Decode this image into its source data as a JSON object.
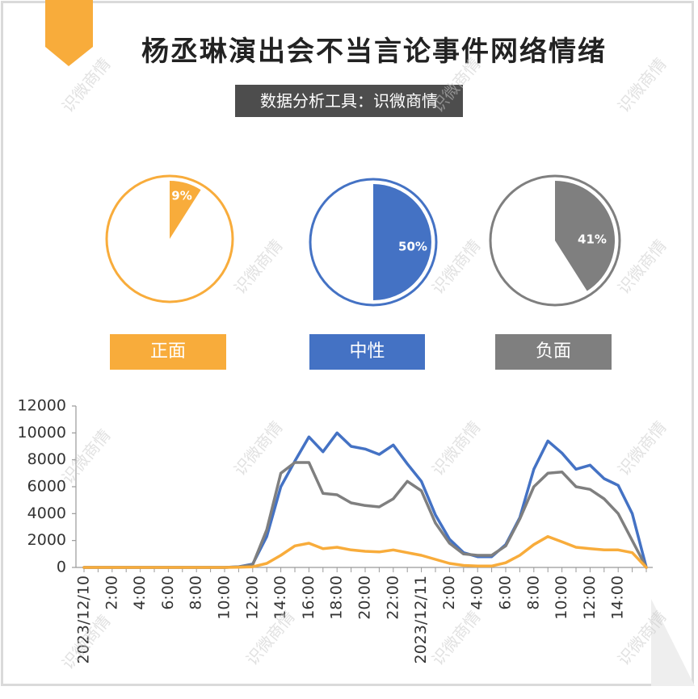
{
  "title": "杨丞琳演出会不当言论事件网络情绪",
  "subtitle": "数据分析工具：识微商情",
  "watermark": "识微商情",
  "colors": {
    "positive": "#f8ac3b",
    "neutral": "#4472c4",
    "negative": "#7f7f7f"
  },
  "pies": [
    {
      "label": "正面",
      "percent": 9,
      "percent_label": "9%",
      "color": "#f8ac3b"
    },
    {
      "label": "中性",
      "percent": 50,
      "percent_label": "50%",
      "color": "#4472c4"
    },
    {
      "label": "负面",
      "percent": 41,
      "percent_label": "41%",
      "color": "#7f7f7f"
    }
  ],
  "chart_data": {
    "type": "line",
    "title": "",
    "xlabel": "",
    "ylabel": "",
    "ylim": [
      0,
      12000
    ],
    "yticks": [
      "0",
      "2000",
      "4000",
      "6000",
      "8000",
      "10000",
      "12000"
    ],
    "ytick_values": [
      0,
      2000,
      4000,
      6000,
      8000,
      10000,
      12000
    ],
    "xtick_labels": [
      "2023/12/10",
      "2:00",
      "4:00",
      "6:00",
      "8:00",
      "10:00",
      "12:00",
      "14:00",
      "16:00",
      "18:00",
      "20:00",
      "22:00",
      "2023/12/11",
      "2:00",
      "4:00",
      "6:00",
      "8:00",
      "10:00",
      "12:00",
      "14:00"
    ],
    "xtick_hours": [
      0,
      2,
      4,
      6,
      8,
      10,
      12,
      14,
      16,
      18,
      20,
      22,
      24,
      26,
      28,
      30,
      32,
      34,
      36,
      38
    ],
    "x_hours": [
      0,
      1,
      2,
      3,
      4,
      5,
      6,
      7,
      8,
      9,
      10,
      11,
      12,
      13,
      14,
      15,
      16,
      17,
      18,
      19,
      20,
      21,
      22,
      23,
      24,
      25,
      26,
      27,
      28,
      29,
      30,
      31,
      32,
      33,
      34,
      35,
      36,
      37,
      38,
      39,
      40
    ],
    "series": [
      {
        "name": "中性",
        "color": "#4472c4",
        "values": [
          0,
          0,
          0,
          0,
          0,
          0,
          0,
          0,
          0,
          0,
          0,
          50,
          250,
          2300,
          6000,
          7900,
          9700,
          8600,
          10000,
          9000,
          8800,
          8400,
          9100,
          7700,
          6400,
          3900,
          2100,
          1100,
          800,
          800,
          1700,
          3700,
          7300,
          9400,
          8500,
          7300,
          7600,
          6600,
          6100,
          4000,
          0
        ]
      },
      {
        "name": "负面",
        "color": "#7f7f7f",
        "values": [
          0,
          0,
          0,
          0,
          0,
          0,
          0,
          0,
          0,
          0,
          0,
          40,
          200,
          2800,
          7000,
          7800,
          7800,
          5500,
          5400,
          4800,
          4600,
          4500,
          5100,
          6400,
          5700,
          3300,
          1800,
          1000,
          900,
          900,
          1600,
          3600,
          6000,
          7000,
          7100,
          6000,
          5800,
          5100,
          4000,
          2000,
          0
        ]
      },
      {
        "name": "正面",
        "color": "#f8ac3b",
        "values": [
          0,
          0,
          0,
          0,
          0,
          0,
          0,
          0,
          0,
          0,
          0,
          10,
          50,
          300,
          900,
          1600,
          1800,
          1400,
          1500,
          1300,
          1200,
          1150,
          1300,
          1100,
          900,
          600,
          300,
          150,
          100,
          100,
          350,
          900,
          1700,
          2300,
          1900,
          1500,
          1400,
          1300,
          1300,
          1100,
          0
        ]
      }
    ]
  }
}
